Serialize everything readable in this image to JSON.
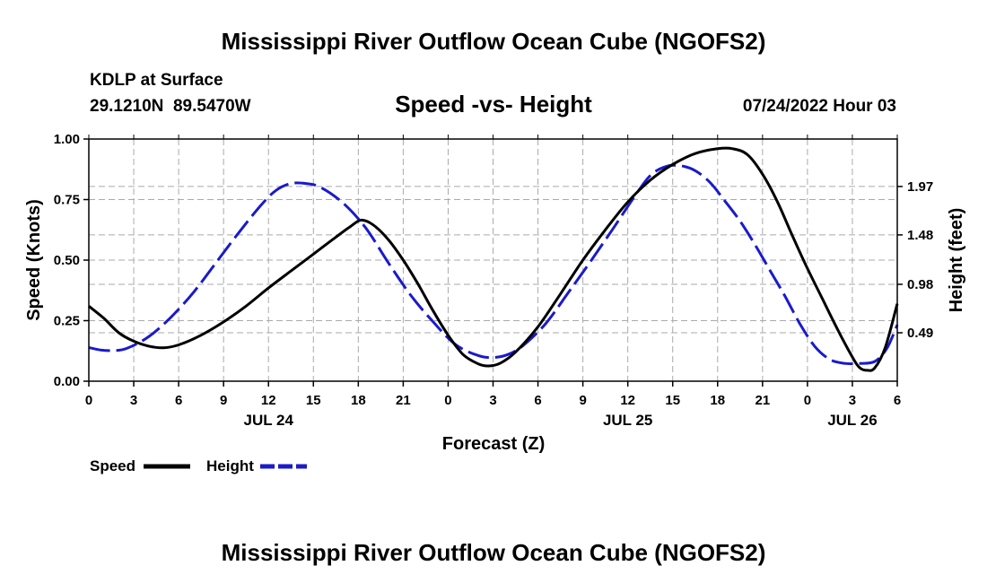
{
  "page": {
    "main_title": "Mississippi River Outflow Ocean Cube (NGOFS2)",
    "footer_title": "Mississippi River Outflow Ocean Cube (NGOFS2)",
    "station": "KDLP at Surface",
    "coords": "29.1210N  89.5470W",
    "subtitle": "Speed -vs- Height",
    "datetime": "07/24/2022 Hour 03"
  },
  "colors": {
    "speed": "#000000",
    "height": "#1a1acc",
    "grid": "#aaaaaa"
  },
  "chart_data": {
    "type": "line",
    "title": "Speed -vs- Height",
    "xlabel": "Forecast (Z)",
    "ylabel_left": "Speed (Knots)",
    "ylabel_right": "Height (feet)",
    "x_range_hours": [
      0,
      54
    ],
    "ylim_left": [
      0,
      1.0
    ],
    "ylim_right": [
      0,
      2.45
    ],
    "x_ticks": [
      {
        "h": 0,
        "label": "0"
      },
      {
        "h": 3,
        "label": "3"
      },
      {
        "h": 6,
        "label": "6"
      },
      {
        "h": 9,
        "label": "9"
      },
      {
        "h": 12,
        "label": "12"
      },
      {
        "h": 15,
        "label": "15"
      },
      {
        "h": 18,
        "label": "18"
      },
      {
        "h": 21,
        "label": "21"
      },
      {
        "h": 24,
        "label": "0"
      },
      {
        "h": 27,
        "label": "3"
      },
      {
        "h": 30,
        "label": "6"
      },
      {
        "h": 33,
        "label": "9"
      },
      {
        "h": 36,
        "label": "12"
      },
      {
        "h": 39,
        "label": "15"
      },
      {
        "h": 42,
        "label": "18"
      },
      {
        "h": 45,
        "label": "21"
      },
      {
        "h": 48,
        "label": "0"
      },
      {
        "h": 51,
        "label": "3"
      },
      {
        "h": 54,
        "label": "6"
      }
    ],
    "date_labels": [
      {
        "h": 12,
        "label": "JUL 24"
      },
      {
        "h": 36,
        "label": "JUL 25"
      },
      {
        "h": 51,
        "label": "JUL 26"
      }
    ],
    "left_ticks": [
      {
        "v": 0.0,
        "label": "0.00"
      },
      {
        "v": 0.25,
        "label": "0.25"
      },
      {
        "v": 0.5,
        "label": "0.50"
      },
      {
        "v": 0.75,
        "label": "0.75"
      },
      {
        "v": 1.0,
        "label": "1.00"
      }
    ],
    "right_ticks": [
      {
        "v": 0.49,
        "label": "0.49"
      },
      {
        "v": 0.98,
        "label": "0.98"
      },
      {
        "v": 1.48,
        "label": "1.48"
      },
      {
        "v": 1.97,
        "label": "1.97"
      }
    ],
    "series": [
      {
        "name": "Speed",
        "axis": "left",
        "style": "solid",
        "points": [
          [
            0,
            0.31
          ],
          [
            1,
            0.26
          ],
          [
            2,
            0.2
          ],
          [
            3,
            0.165
          ],
          [
            4,
            0.145
          ],
          [
            5,
            0.138
          ],
          [
            6,
            0.15
          ],
          [
            7.5,
            0.19
          ],
          [
            9,
            0.245
          ],
          [
            10.5,
            0.31
          ],
          [
            12,
            0.385
          ],
          [
            13.5,
            0.455
          ],
          [
            15,
            0.525
          ],
          [
            16.5,
            0.595
          ],
          [
            17.5,
            0.64
          ],
          [
            18.2,
            0.665
          ],
          [
            19,
            0.645
          ],
          [
            20,
            0.585
          ],
          [
            21,
            0.5
          ],
          [
            22,
            0.4
          ],
          [
            23,
            0.29
          ],
          [
            24,
            0.19
          ],
          [
            25,
            0.11
          ],
          [
            26,
            0.072
          ],
          [
            26.7,
            0.063
          ],
          [
            27.5,
            0.075
          ],
          [
            28.5,
            0.12
          ],
          [
            30,
            0.225
          ],
          [
            31.5,
            0.36
          ],
          [
            33,
            0.5
          ],
          [
            34.5,
            0.625
          ],
          [
            36,
            0.74
          ],
          [
            37.5,
            0.83
          ],
          [
            39,
            0.895
          ],
          [
            40.5,
            0.94
          ],
          [
            42,
            0.96
          ],
          [
            43,
            0.96
          ],
          [
            44,
            0.935
          ],
          [
            45,
            0.855
          ],
          [
            46,
            0.74
          ],
          [
            47,
            0.6
          ],
          [
            48,
            0.465
          ],
          [
            49,
            0.34
          ],
          [
            50,
            0.215
          ],
          [
            51,
            0.1
          ],
          [
            51.5,
            0.055
          ],
          [
            52,
            0.045
          ],
          [
            52.5,
            0.055
          ],
          [
            53.2,
            0.14
          ],
          [
            54,
            0.32
          ]
        ]
      },
      {
        "name": "Height",
        "axis": "right",
        "style": "dashed",
        "points": [
          [
            0,
            0.34
          ],
          [
            0.8,
            0.315
          ],
          [
            1.5,
            0.31
          ],
          [
            2.5,
            0.33
          ],
          [
            4,
            0.45
          ],
          [
            5.5,
            0.65
          ],
          [
            7,
            0.9
          ],
          [
            8.5,
            1.2
          ],
          [
            10,
            1.5
          ],
          [
            11.5,
            1.78
          ],
          [
            12.5,
            1.93
          ],
          [
            13.5,
            2.0
          ],
          [
            14.5,
            2.0
          ],
          [
            15.5,
            1.96
          ],
          [
            17,
            1.8
          ],
          [
            18.5,
            1.55
          ],
          [
            20,
            1.2
          ],
          [
            21.5,
            0.87
          ],
          [
            23,
            0.6
          ],
          [
            24.5,
            0.37
          ],
          [
            26,
            0.26
          ],
          [
            27,
            0.24
          ],
          [
            28,
            0.27
          ],
          [
            29,
            0.36
          ],
          [
            30.5,
            0.58
          ],
          [
            32,
            0.89
          ],
          [
            33.5,
            1.21
          ],
          [
            35,
            1.54
          ],
          [
            36.5,
            1.88
          ],
          [
            37.5,
            2.08
          ],
          [
            38.5,
            2.17
          ],
          [
            39.5,
            2.18
          ],
          [
            40.5,
            2.13
          ],
          [
            41.5,
            2.01
          ],
          [
            42.5,
            1.82
          ],
          [
            43.5,
            1.62
          ],
          [
            44.5,
            1.38
          ],
          [
            45.5,
            1.12
          ],
          [
            46.5,
            0.86
          ],
          [
            47.5,
            0.58
          ],
          [
            48.5,
            0.35
          ],
          [
            49.5,
            0.22
          ],
          [
            50.5,
            0.18
          ],
          [
            51.5,
            0.18
          ],
          [
            52.5,
            0.2
          ],
          [
            53.3,
            0.33
          ],
          [
            54,
            0.57
          ]
        ]
      }
    ],
    "legend": [
      {
        "label": "Speed",
        "style": "solid"
      },
      {
        "label": "Height",
        "style": "dashed"
      }
    ]
  }
}
